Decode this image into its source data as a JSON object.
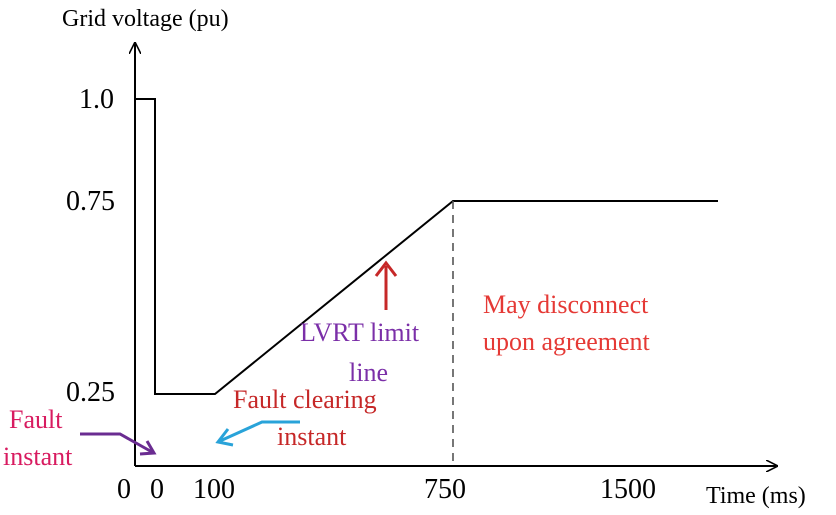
{
  "diagram": {
    "y_axis_label": "Grid voltage (pu)",
    "x_axis_label": "Time (ms)",
    "y_ticks": [
      "1.0",
      "0.75",
      "0.25"
    ],
    "x_ticks": [
      "0",
      "0",
      "100",
      "750",
      "1500"
    ],
    "annotations": {
      "fault_instant_line1": "Fault",
      "fault_instant_line2": "instant",
      "fault_clearing_line1": "Fault clearing",
      "fault_clearing_line2": "instant",
      "lvrt_line1": "LVRT limit",
      "lvrt_line2": "line",
      "disconnect_line1": "May disconnect",
      "disconnect_line2": "upon agreement"
    },
    "colors": {
      "axis": "#000000",
      "curve": "#000000",
      "fault_instant_text": "#d81b60",
      "fault_instant_arrow": "#6a2c91",
      "fault_clearing_text": "#c62828",
      "fault_clearing_arrow": "#29a3d9",
      "lvrt_text": "#7b2fa8",
      "lvrt_arrow": "#c62828",
      "disconnect_text": "#e53935"
    }
  }
}
